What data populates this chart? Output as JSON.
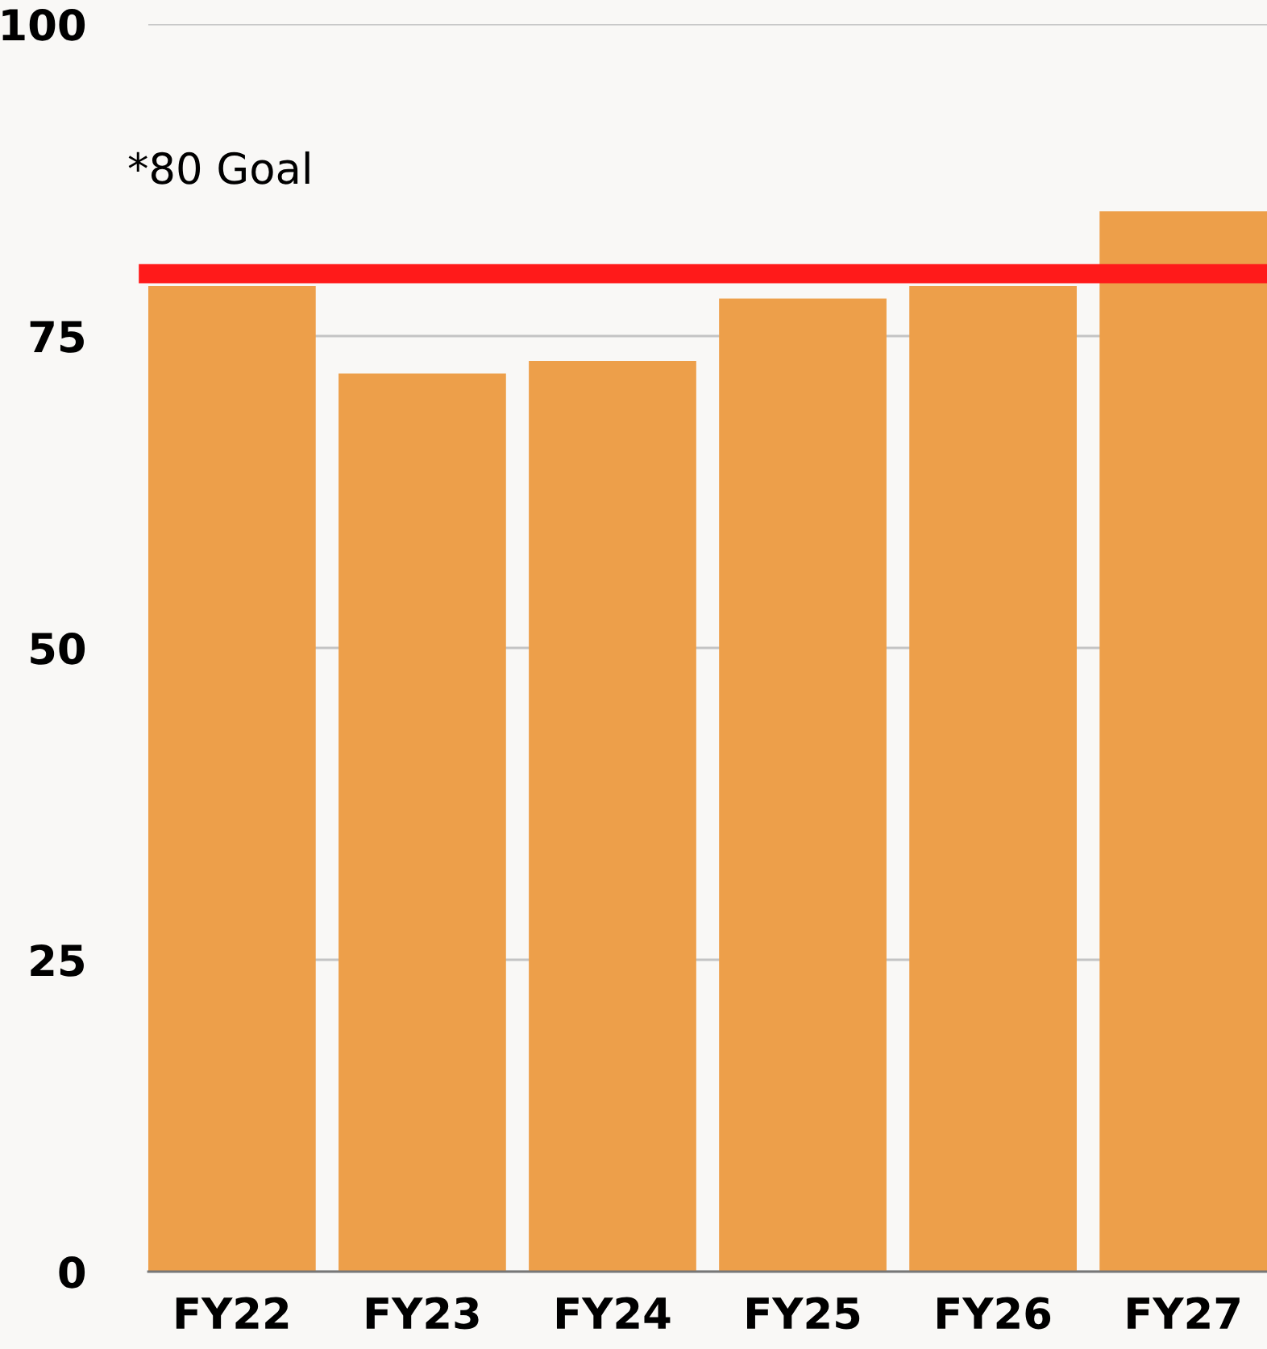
{
  "chart_data": {
    "type": "bar",
    "categories": [
      "FY22",
      "FY23",
      "FY24",
      "FY25",
      "FY26",
      "FY27"
    ],
    "values": [
      79,
      72,
      73,
      78,
      79,
      85
    ],
    "color": "#ed9f4a",
    "ylim": [
      0,
      100
    ],
    "yticks": [
      0,
      25,
      50,
      75,
      100
    ],
    "grid": "y",
    "ref_lines": [
      {
        "axis": "y",
        "value": 80,
        "label": "*80 Goal",
        "color": "#ff1a1a"
      }
    ]
  }
}
